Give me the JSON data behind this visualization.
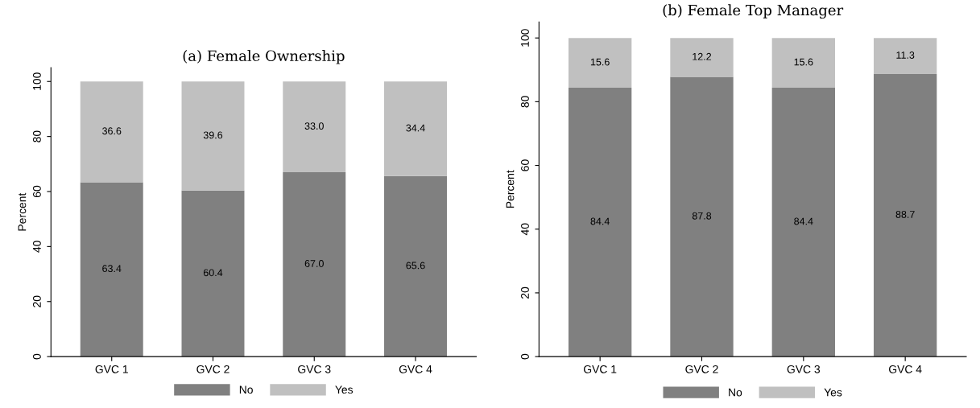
{
  "chart_data": [
    {
      "type": "bar",
      "title": "(a) Female Ownership",
      "ylabel": "Percent",
      "categories": [
        "GVC 1",
        "GVC 2",
        "GVC 3",
        "GVC 4"
      ],
      "stacked": true,
      "ylim": [
        0,
        105
      ],
      "yticks": [
        0,
        20,
        40,
        60,
        80,
        100
      ],
      "grid": false,
      "legend": "bottom",
      "series": [
        {
          "name": "No",
          "color": "#808080",
          "values": [
            63.4,
            60.4,
            67.0,
            65.6
          ],
          "value_labels": [
            "63.4",
            "60.4",
            "67.0",
            "65.6"
          ]
        },
        {
          "name": "Yes",
          "color": "#c0c0c0",
          "values": [
            36.6,
            39.6,
            33.0,
            34.4
          ],
          "value_labels": [
            "36.6",
            "39.6",
            "33.0",
            "34.4"
          ]
        }
      ]
    },
    {
      "type": "bar",
      "title": "(b) Female Top Manager",
      "ylabel": "Percent",
      "categories": [
        "GVC 1",
        "GVC 2",
        "GVC 3",
        "GVC 4"
      ],
      "stacked": true,
      "ylim": [
        0,
        105
      ],
      "yticks": [
        0,
        20,
        40,
        60,
        80,
        100
      ],
      "grid": false,
      "legend": "bottom",
      "series": [
        {
          "name": "No",
          "color": "#808080",
          "values": [
            84.4,
            87.8,
            84.4,
            88.7
          ],
          "value_labels": [
            "84.4",
            "87.8",
            "84.4",
            "88.7"
          ]
        },
        {
          "name": "Yes",
          "color": "#c0c0c0",
          "values": [
            15.6,
            12.2,
            15.6,
            11.3
          ],
          "value_labels": [
            "15.6",
            "12.2",
            "15.6",
            "11.3"
          ]
        }
      ]
    }
  ]
}
